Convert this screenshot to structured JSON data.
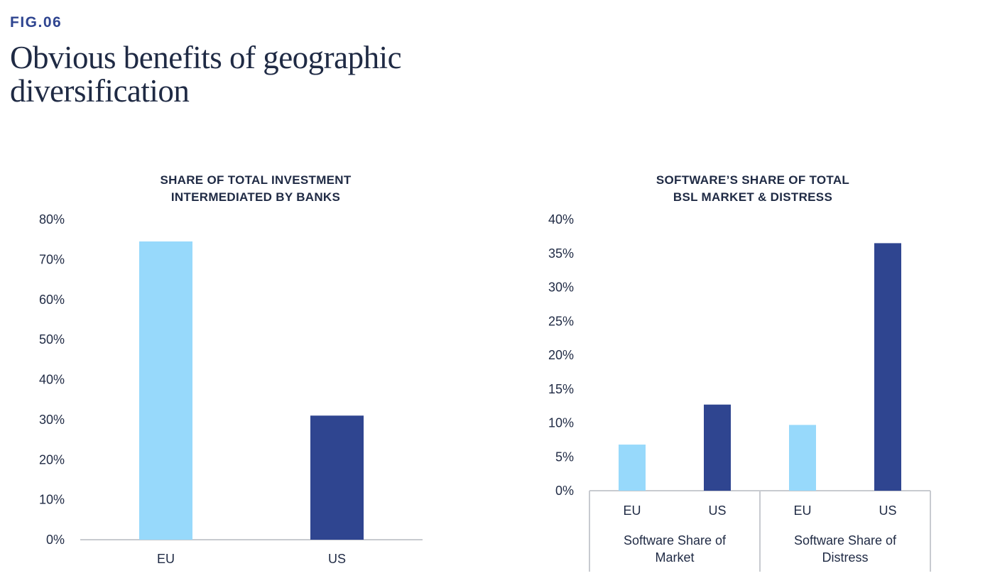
{
  "figure": {
    "label": "FIG.06",
    "title": "Obvious benefits of geographic diversification"
  },
  "colors": {
    "eu": "#97d9fb",
    "us": "#2f4590",
    "axis": "#c8cbd0",
    "text": "#1f2a44"
  },
  "chart_data": [
    {
      "type": "bar",
      "title_lines": [
        "SHARE OF TOTAL INVESTMENT",
        "INTERMEDIATED BY BANKS"
      ],
      "categories": [
        "EU",
        "US"
      ],
      "values": [
        74.5,
        31
      ],
      "ylim": [
        0,
        80
      ],
      "yticks": [
        "0%",
        "10%",
        "20%",
        "30%",
        "40%",
        "50%",
        "60%",
        "70%",
        "80%"
      ],
      "grid": false,
      "bar_colors": [
        "#97d9fb",
        "#2f4590"
      ]
    },
    {
      "type": "bar",
      "title_lines": [
        "SOFTWARE’S SHARE OF TOTAL",
        "BSL MARKET & DISTRESS"
      ],
      "groups": [
        {
          "label_lines": [
            "Software Share of",
            "Market"
          ],
          "categories": [
            "EU",
            "US"
          ],
          "values": [
            6.8,
            12.7
          ]
        },
        {
          "label_lines": [
            "Software Share of",
            "Distress"
          ],
          "categories": [
            "EU",
            "US"
          ],
          "values": [
            9.7,
            36.5
          ]
        }
      ],
      "ylim": [
        0,
        40
      ],
      "yticks": [
        "0%",
        "5%",
        "10%",
        "15%",
        "20%",
        "25%",
        "30%",
        "35%",
        "40%"
      ],
      "grid": false,
      "bar_colors": [
        "#97d9fb",
        "#2f4590"
      ]
    }
  ]
}
